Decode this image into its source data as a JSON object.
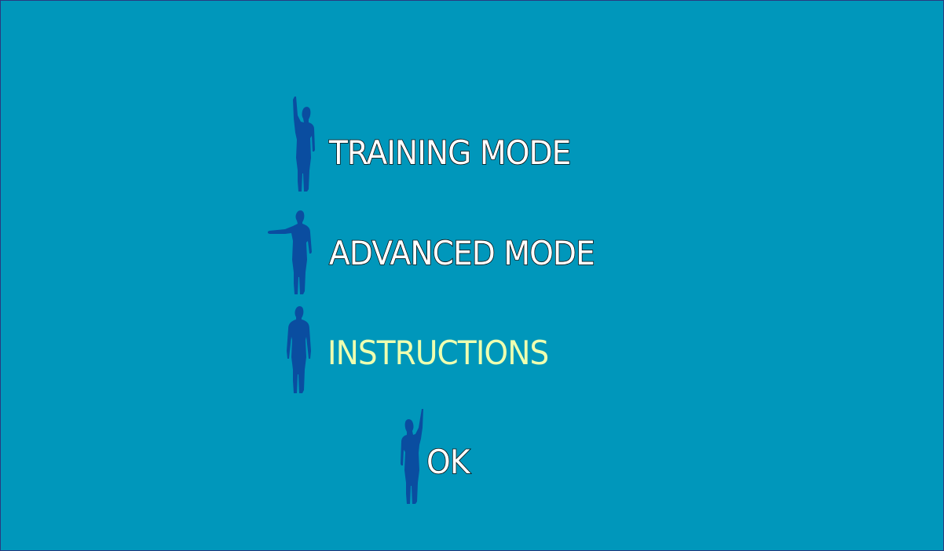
{
  "colors": {
    "background": "#0097bb",
    "figure": "#0a4da0",
    "label_default": "#ffffff",
    "label_selected": "#eeffb0",
    "label_outline": "#0a0a0a"
  },
  "menu": {
    "selected_index": 2,
    "items": [
      {
        "label": "TRAINING MODE",
        "pose": "right-arm-raised",
        "icon": "person-arm-raised-icon"
      },
      {
        "label": "ADVANCED MODE",
        "pose": "left-arm-extended",
        "icon": "person-arm-extended-icon"
      },
      {
        "label": "INSTRUCTIONS",
        "pose": "arms-down",
        "icon": "person-standing-icon"
      },
      {
        "label": "OK",
        "pose": "left-arm-raised",
        "icon": "person-arm-raised-icon"
      }
    ]
  }
}
